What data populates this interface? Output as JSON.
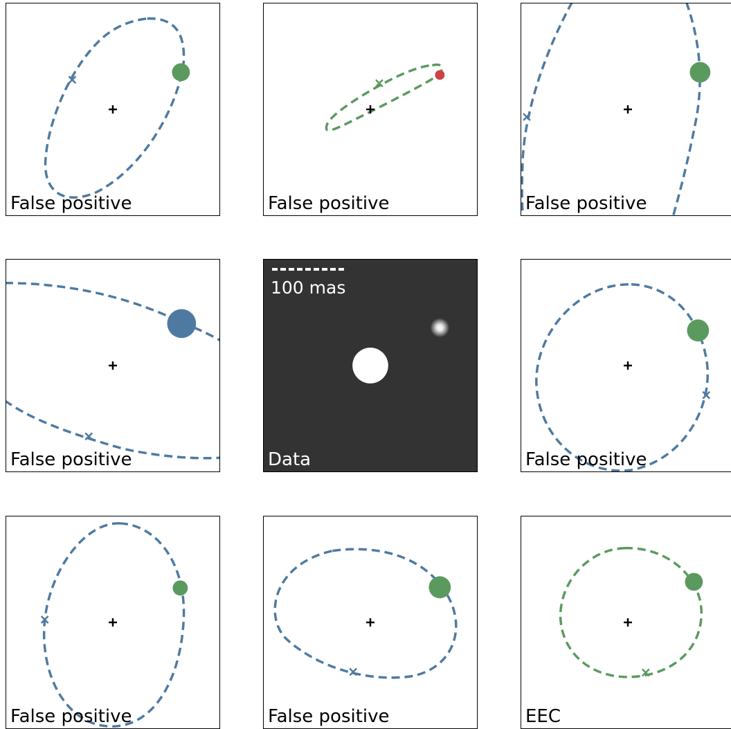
{
  "colors": {
    "blue": "#4e7aa1",
    "green": "#5b9a5e",
    "red": "#c94444",
    "dark_bg": "#333333",
    "white": "#ffffff",
    "black": "#000000"
  },
  "panels": [
    {
      "label": "False positive",
      "orbit_color": "blue",
      "planet_color": "green"
    },
    {
      "label": "False positive",
      "orbit_color": "green",
      "planet_color": "red"
    },
    {
      "label": "False positive",
      "orbit_color": "blue",
      "planet_color": "green"
    },
    {
      "label": "False positive",
      "orbit_color": "blue",
      "planet_color": "blue"
    },
    {
      "label": "Data",
      "scale_label": "100 mas"
    },
    {
      "label": "False positive",
      "orbit_color": "blue",
      "planet_color": "green"
    },
    {
      "label": "False positive",
      "orbit_color": "blue",
      "planet_color": "green"
    },
    {
      "label": "False positive",
      "orbit_color": "blue",
      "planet_color": "green"
    },
    {
      "label": "EEC",
      "orbit_color": "green",
      "planet_color": "green"
    }
  ]
}
